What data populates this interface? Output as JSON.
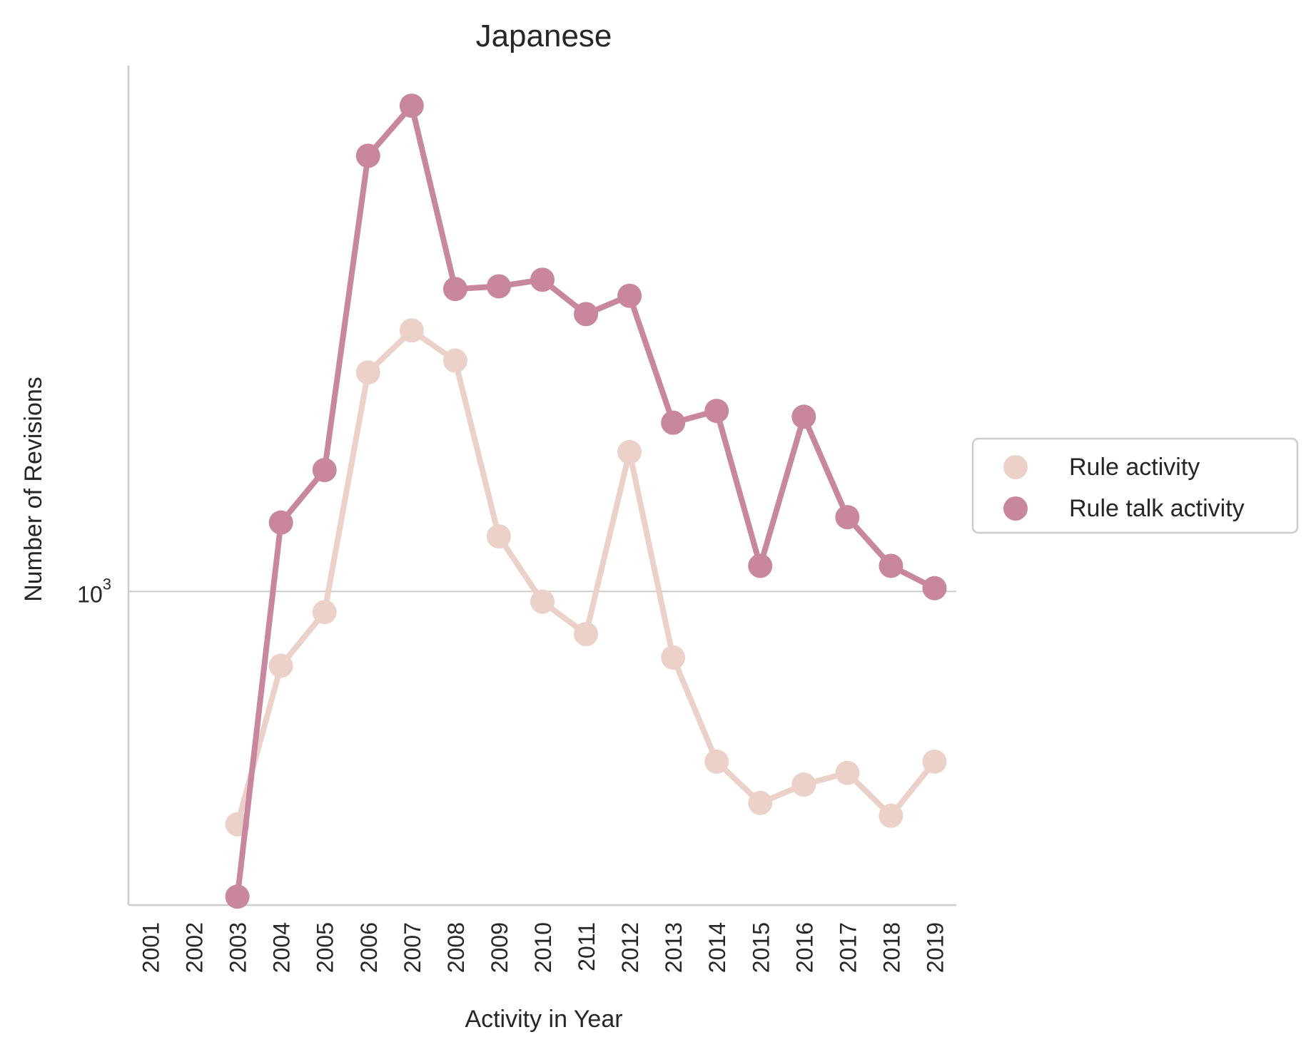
{
  "chart_data": {
    "type": "line",
    "title": "Japanese",
    "xlabel": "Activity in Year",
    "ylabel": "Number of Revisions",
    "y_scale": "log",
    "grid": "horizontal major gridline at 10^3 only",
    "legend_position": "right, outside plot",
    "categories": [
      "2001",
      "2002",
      "2003",
      "2004",
      "2005",
      "2006",
      "2007",
      "2008",
      "2009",
      "2010",
      "2011",
      "2012",
      "2013",
      "2014",
      "2015",
      "2016",
      "2017",
      "2018",
      "2019"
    ],
    "y_ticks": [
      {
        "value": 1000,
        "label_base": "10",
        "label_exp": "3"
      }
    ],
    "ylim": [
      390,
      4850
    ],
    "series": [
      {
        "name": "Rule activity",
        "color": "#ecd1c9",
        "values": [
          null,
          null,
          497,
          800,
          940,
          1930,
          2190,
          2000,
          1180,
          970,
          880,
          1520,
          820,
          600,
          530,
          560,
          580,
          510,
          600
        ]
      },
      {
        "name": "Rule talk activity",
        "color": "#c9869f",
        "values": [
          null,
          null,
          400,
          1230,
          1440,
          3700,
          4300,
          2480,
          2500,
          2550,
          2300,
          2430,
          1660,
          1720,
          1080,
          1690,
          1250,
          1080,
          1010
        ]
      }
    ]
  }
}
